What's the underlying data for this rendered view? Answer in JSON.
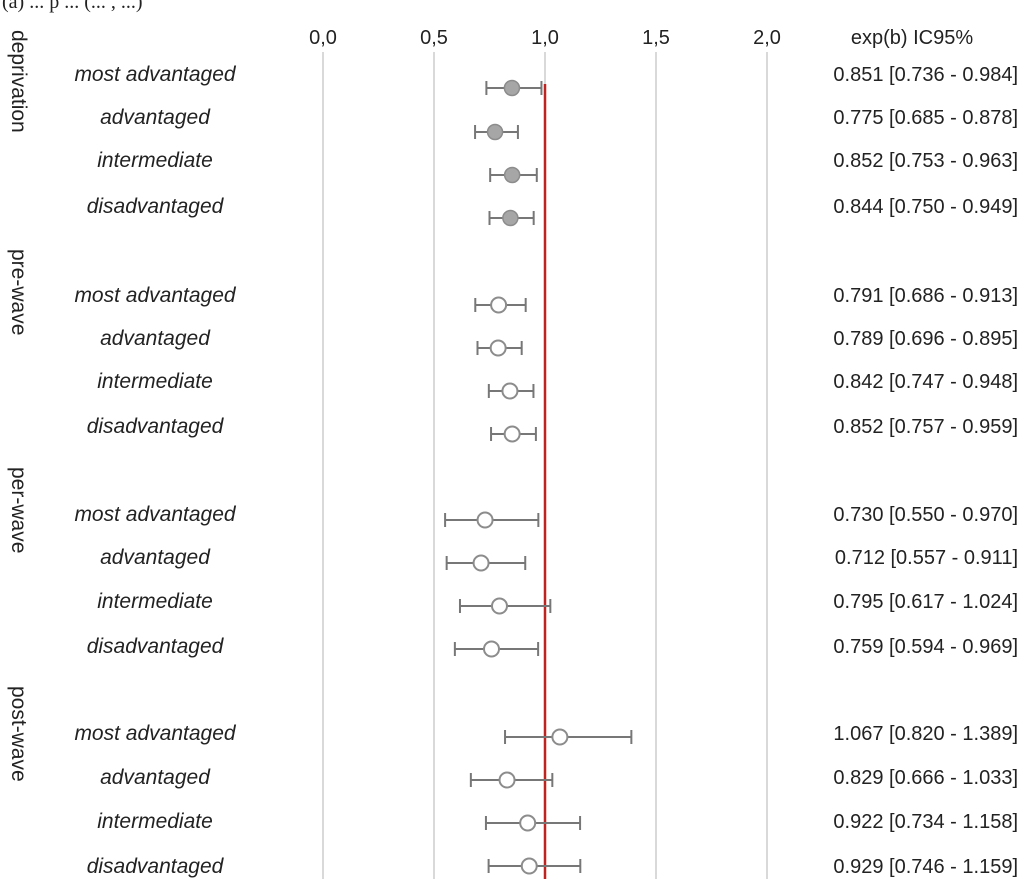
{
  "chart_data": {
    "type": "forest",
    "header_text": "(a) ... p ... (... , ...)",
    "x_ticks": [
      {
        "value": 0.0,
        "label": "0,0"
      },
      {
        "value": 0.5,
        "label": "0,5"
      },
      {
        "value": 1.0,
        "label": "1,0"
      },
      {
        "value": 1.5,
        "label": "1,5"
      },
      {
        "value": 2.0,
        "label": "2,0"
      }
    ],
    "xlim": [
      0.0,
      2.0
    ],
    "grid": "vertical",
    "reference_line": 1.0,
    "reference_color": "#c0221f",
    "values_header": "exp(b) IC95%",
    "groups": [
      {
        "name": "deprivation",
        "marker": "filled",
        "rows": [
          {
            "label": "most advantaged",
            "est": 0.851,
            "lo": 0.736,
            "hi": 0.984,
            "text": "0.851 [0.736 - 0.984]"
          },
          {
            "label": "advantaged",
            "est": 0.775,
            "lo": 0.685,
            "hi": 0.878,
            "text": "0.775 [0.685 - 0.878]"
          },
          {
            "label": "intermediate",
            "est": 0.852,
            "lo": 0.753,
            "hi": 0.963,
            "text": "0.852 [0.753 - 0.963]"
          },
          {
            "label": "disadvantaged",
            "est": 0.844,
            "lo": 0.75,
            "hi": 0.949,
            "text": "0.844 [0.750 - 0.949]"
          }
        ]
      },
      {
        "name": "pre-wave",
        "marker": "open",
        "rows": [
          {
            "label": "most advantaged",
            "est": 0.791,
            "lo": 0.686,
            "hi": 0.913,
            "text": "0.791 [0.686 - 0.913]"
          },
          {
            "label": "advantaged",
            "est": 0.789,
            "lo": 0.696,
            "hi": 0.895,
            "text": "0.789 [0.696 - 0.895]"
          },
          {
            "label": "intermediate",
            "est": 0.842,
            "lo": 0.747,
            "hi": 0.948,
            "text": "0.842 [0.747 - 0.948]"
          },
          {
            "label": "disadvantaged",
            "est": 0.852,
            "lo": 0.757,
            "hi": 0.959,
            "text": "0.852 [0.757 - 0.959]"
          }
        ]
      },
      {
        "name": "per-wave",
        "marker": "open",
        "rows": [
          {
            "label": "most advantaged",
            "est": 0.73,
            "lo": 0.55,
            "hi": 0.97,
            "text": "0.730 [0.550 - 0.970]"
          },
          {
            "label": "advantaged",
            "est": 0.712,
            "lo": 0.557,
            "hi": 0.911,
            "text": "0.712 [0.557 - 0.911]"
          },
          {
            "label": "intermediate",
            "est": 0.795,
            "lo": 0.617,
            "hi": 1.024,
            "text": "0.795 [0.617 - 1.024]"
          },
          {
            "label": "disadvantaged",
            "est": 0.759,
            "lo": 0.594,
            "hi": 0.969,
            "text": "0.759 [0.594 - 0.969]"
          }
        ]
      },
      {
        "name": "post-wave",
        "marker": "open",
        "rows": [
          {
            "label": "most advantaged",
            "est": 1.067,
            "lo": 0.82,
            "hi": 1.389,
            "text": "1.067 [0.820 - 1.389]"
          },
          {
            "label": "advantaged",
            "est": 0.829,
            "lo": 0.666,
            "hi": 1.033,
            "text": "0.829 [0.666 - 1.033]"
          },
          {
            "label": "intermediate",
            "est": 0.922,
            "lo": 0.734,
            "hi": 1.158,
            "text": "0.922 [0.734 - 1.158]"
          },
          {
            "label": "disadvantaged",
            "est": 0.929,
            "lo": 0.746,
            "hi": 1.159,
            "text": "0.929 [0.746 - 1.159]"
          }
        ]
      }
    ]
  }
}
